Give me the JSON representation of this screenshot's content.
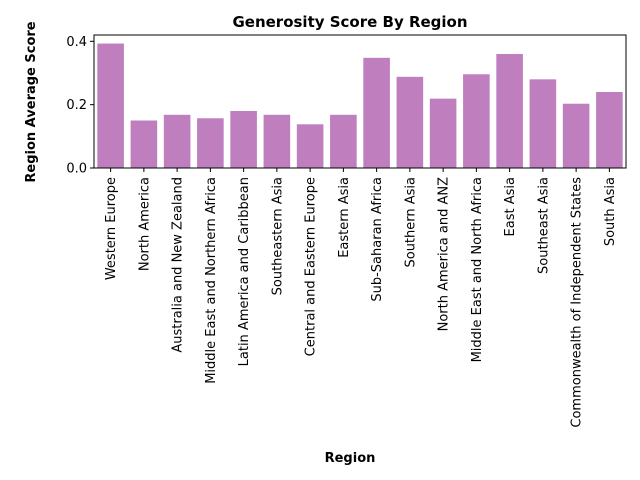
{
  "chart_data": {
    "type": "bar",
    "title": "Generosity Score By Region",
    "xlabel": "Region",
    "ylabel": "Region Average Score",
    "categories": [
      "Western Europe",
      "North America",
      "Australia and New Zealand",
      "Middle East and Northern Africa",
      "Latin America and Caribbean",
      "Southeastern Asia",
      "Central and Eastern Europe",
      "Eastern Asia",
      "Sub-Saharan Africa",
      "Southern Asia",
      "North America and ANZ",
      "Middle East and North Africa",
      "East Asia",
      "Southeast Asia",
      "Commonwealth of Independent States",
      "South Asia"
    ],
    "values": [
      0.393,
      0.15,
      0.168,
      0.157,
      0.18,
      0.168,
      0.138,
      0.168,
      0.348,
      0.288,
      0.219,
      0.296,
      0.36,
      0.28,
      0.203,
      0.24
    ],
    "ylim": [
      0,
      0.42
    ],
    "yticks": [
      "0.0",
      "0.2",
      "0.4"
    ],
    "ytick_values": [
      0.0,
      0.2,
      0.4
    ],
    "bar_color": "#bf7fbf",
    "grid": false
  }
}
